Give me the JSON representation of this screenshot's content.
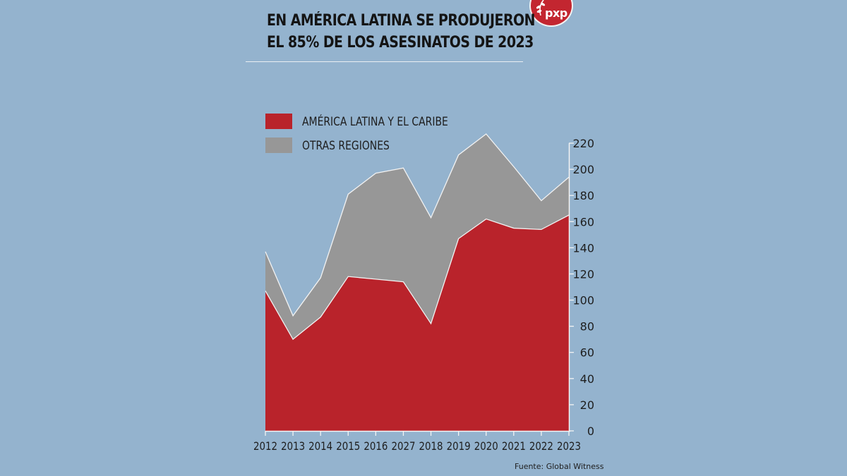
{
  "title": {
    "line1": "EN AMÉRICA LATINA SE PRODUJERON",
    "line2": "EL 85% DE LOS ASESINATOS DE 2023"
  },
  "logo": {
    "text": "pxp",
    "color": "#c32630"
  },
  "source": "Fuente: Global Witness",
  "colors": {
    "background": "#94b3ce",
    "latam": "#b9232b",
    "other": "#979797",
    "outline": "#f2f2f2"
  },
  "chart_data": {
    "type": "area",
    "stacked": true,
    "x": [
      "2012",
      "2013",
      "2014",
      "2015",
      "2016",
      "2027",
      "2018",
      "2019",
      "2020",
      "2021",
      "2022",
      "2023"
    ],
    "series": [
      {
        "name": "AMÉRICA LATINA Y EL CARIBE",
        "color": "#b9232b",
        "values": [
          107,
          70,
          87,
          118,
          116,
          114,
          82,
          147,
          162,
          155,
          154,
          165
        ]
      },
      {
        "name": "OTRAS REGIONES",
        "color": "#979797",
        "values": [
          30,
          18,
          30,
          63,
          81,
          87,
          81,
          64,
          65,
          47,
          22,
          29
        ]
      }
    ],
    "yticks": [
      0,
      20,
      40,
      60,
      80,
      100,
      120,
      140,
      160,
      180,
      200,
      220
    ],
    "ylim": [
      0,
      220
    ],
    "axis_side": "right",
    "legend": "top-left",
    "grid": false
  }
}
